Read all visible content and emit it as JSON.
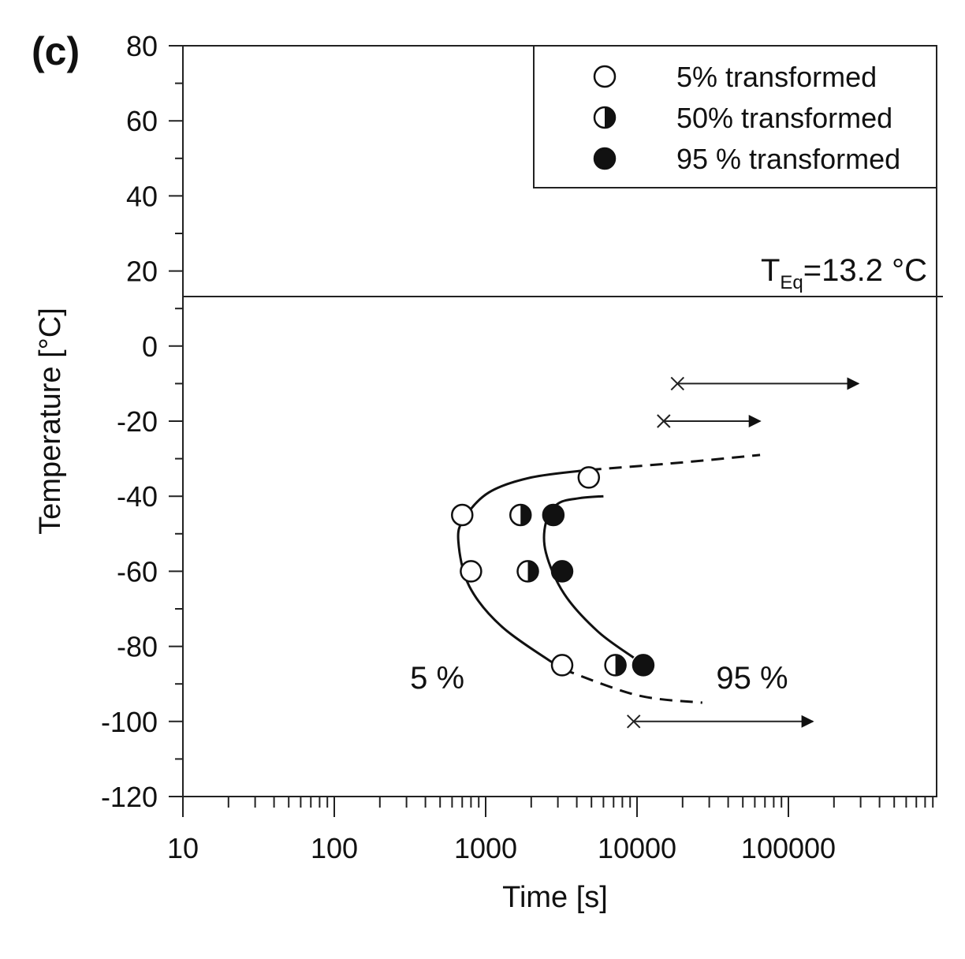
{
  "chart_data": {
    "type": "scatter",
    "panel_label": "(c)",
    "xlabel": "Time [s]",
    "ylabel": "Temperature [°C]",
    "x_scale": "log",
    "xlim": [
      10,
      1000000
    ],
    "ylim": [
      -120,
      80
    ],
    "x_tick_labels": [
      "10",
      "100",
      "1000",
      "10000",
      "100000"
    ],
    "x_tick_values": [
      10,
      100,
      1000,
      10000,
      100000
    ],
    "y_tick_values": [
      80,
      60,
      40,
      20,
      0,
      -20,
      -40,
      -60,
      -80,
      -100,
      -120
    ],
    "y_tick_labels": [
      "80",
      "60",
      "40",
      "20",
      "0",
      "-20",
      "-40",
      "-60",
      "-80",
      "-100",
      "-120"
    ],
    "grid": false,
    "legend_position": "top-right",
    "legend": [
      {
        "marker": "open-circle",
        "label": "5% transformed"
      },
      {
        "marker": "half-filled-circle",
        "label": "50% transformed"
      },
      {
        "marker": "filled-circle",
        "label": "95 % transformed"
      }
    ],
    "series": [
      {
        "name": "5% transformed",
        "marker": "open-circle",
        "points": [
          {
            "x": 4800,
            "y": -35
          },
          {
            "x": 700,
            "y": -45
          },
          {
            "x": 800,
            "y": -60
          },
          {
            "x": 3200,
            "y": -85
          }
        ]
      },
      {
        "name": "50% transformed",
        "marker": "half-filled-circle",
        "points": [
          {
            "x": 1700,
            "y": -45
          },
          {
            "x": 1900,
            "y": -60
          },
          {
            "x": 7200,
            "y": -85
          }
        ]
      },
      {
        "name": "95 % transformed",
        "marker": "filled-circle",
        "points": [
          {
            "x": 2800,
            "y": -45
          },
          {
            "x": 3200,
            "y": -60
          },
          {
            "x": 11000,
            "y": -85
          }
        ]
      }
    ],
    "no_transformation_points": [
      {
        "x": 18500,
        "y": -10,
        "arrow_to": 290000
      },
      {
        "x": 15000,
        "y": -20,
        "arrow_to": 65000
      },
      {
        "x": 9500,
        "y": -100,
        "arrow_to": 145000
      }
    ],
    "curves": [
      {
        "label": "5 %",
        "style": "solid",
        "points": [
          [
            4800,
            -33
          ],
          [
            2000,
            -35
          ],
          [
            1050,
            -39
          ],
          [
            720,
            -46
          ],
          [
            660,
            -52
          ],
          [
            780,
            -64
          ],
          [
            1300,
            -75
          ],
          [
            3200,
            -86
          ]
        ]
      },
      {
        "label": "5 %",
        "style": "dashed",
        "points": [
          [
            4800,
            -33
          ],
          [
            20000,
            -31
          ],
          [
            65000,
            -29
          ]
        ]
      },
      {
        "label": "5 %",
        "style": "dashed",
        "points": [
          [
            3200,
            -86
          ],
          [
            10000,
            -93
          ],
          [
            27000,
            -95
          ]
        ]
      },
      {
        "label": "95 %",
        "style": "solid",
        "points": [
          [
            6000,
            -40
          ],
          [
            4200,
            -40.5
          ],
          [
            3000,
            -42
          ],
          [
            2500,
            -47
          ],
          [
            2500,
            -55
          ],
          [
            3300,
            -66
          ],
          [
            5500,
            -76
          ],
          [
            9500,
            -83
          ]
        ]
      }
    ],
    "annotations": [
      {
        "text": "5 %",
        "x": 650,
        "y": -87
      },
      {
        "text": "95 %",
        "x": 45000,
        "y": -87
      }
    ],
    "reference_line": {
      "y": 13.2,
      "label_main": "T",
      "label_sub": "Eq",
      "label_rest": "=13.2 °C"
    }
  }
}
